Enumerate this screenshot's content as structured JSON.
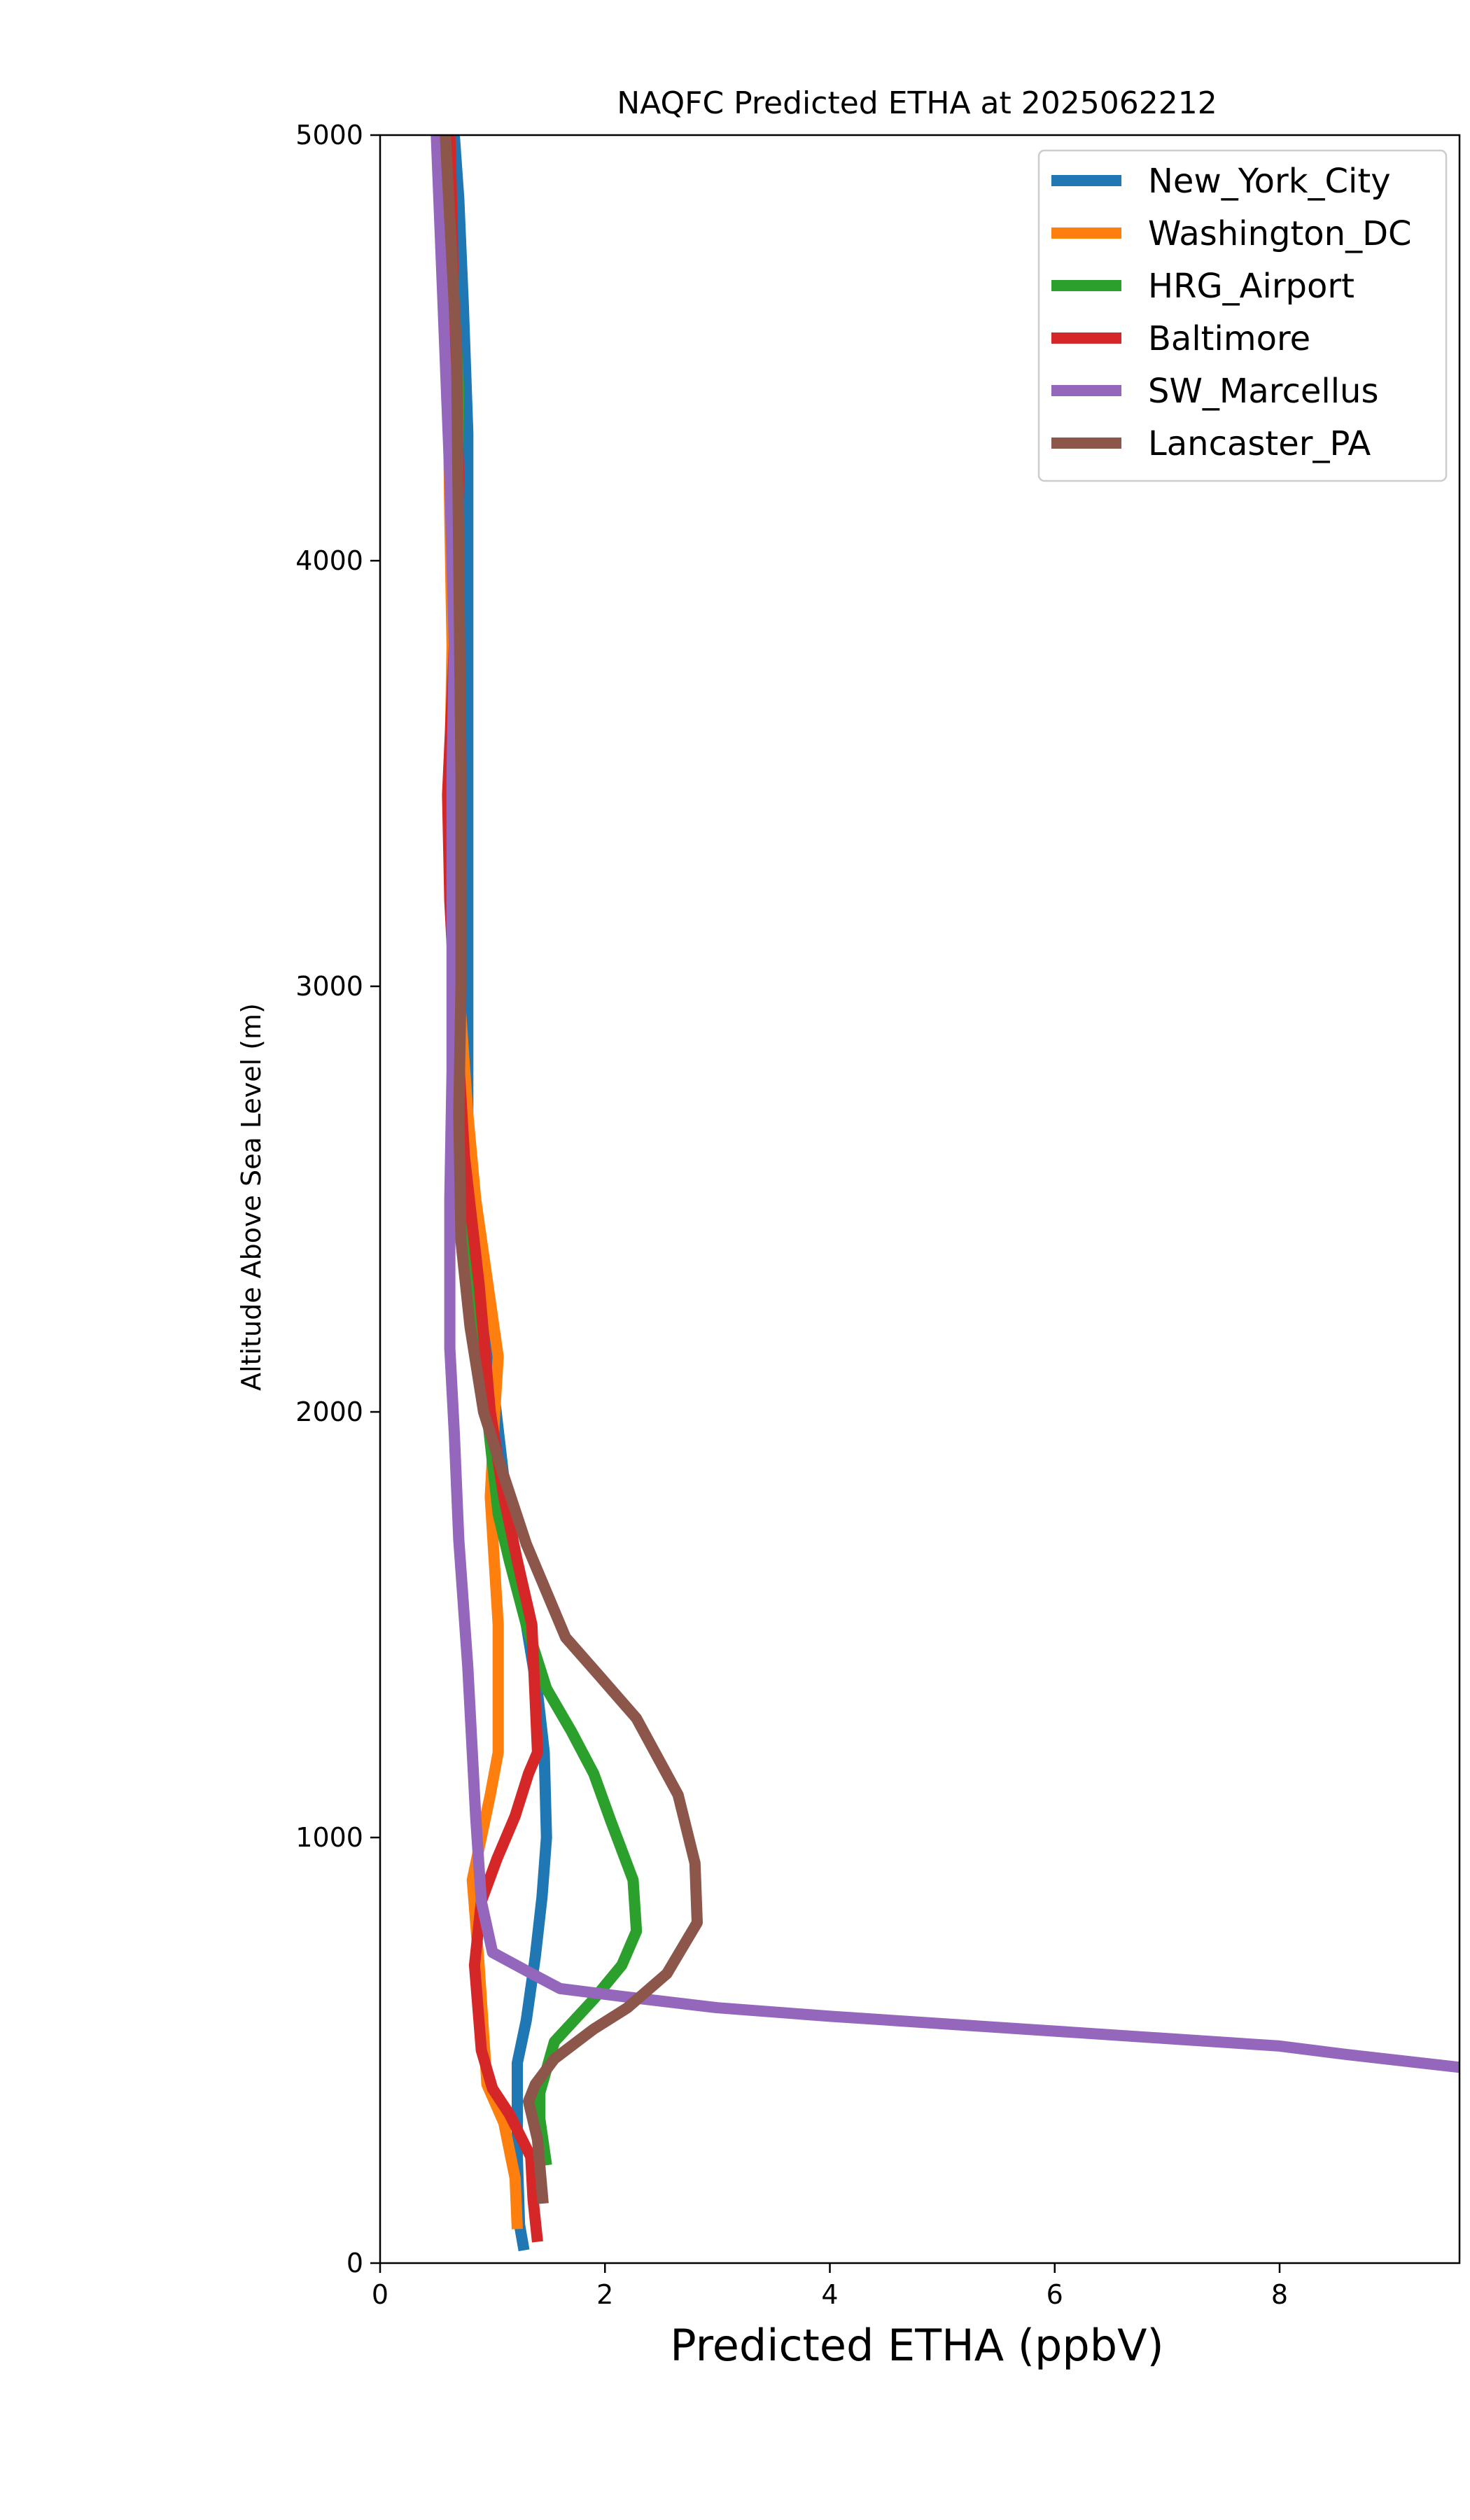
{
  "chart_data": {
    "type": "line",
    "title": "NAQFC Predicted ETHA at 2025062212",
    "xlabel": "Predicted ETHA (ppbV)",
    "ylabel": "Altitude Above Sea Level (m)",
    "xlim": [
      0,
      9.6
    ],
    "ylim": [
      0,
      5000
    ],
    "x_ticks": [
      0,
      2,
      4,
      6,
      8
    ],
    "y_ticks": [
      0,
      1000,
      2000,
      3000,
      4000,
      5000
    ],
    "grid": false,
    "legend_position": "top-right",
    "series": [
      {
        "name": "New_York_City",
        "color": "#1f77b4",
        "points": [
          [
            1.28,
            30
          ],
          [
            1.24,
            90
          ],
          [
            1.22,
            250
          ],
          [
            1.22,
            470
          ],
          [
            1.3,
            570
          ],
          [
            1.38,
            720
          ],
          [
            1.44,
            860
          ],
          [
            1.48,
            1000
          ],
          [
            1.46,
            1200
          ],
          [
            1.4,
            1340
          ],
          [
            1.3,
            1500
          ],
          [
            1.12,
            1800
          ],
          [
            0.9,
            2300
          ],
          [
            0.78,
            2600
          ],
          [
            0.78,
            2900
          ],
          [
            0.78,
            3200
          ],
          [
            0.78,
            3450
          ],
          [
            0.78,
            3800
          ],
          [
            0.78,
            4300
          ],
          [
            0.74,
            4600
          ],
          [
            0.7,
            4850
          ],
          [
            0.66,
            5000
          ]
        ]
      },
      {
        "name": "Washington_DC",
        "color": "#ff7f0e",
        "points": [
          [
            1.22,
            80
          ],
          [
            1.2,
            200
          ],
          [
            1.1,
            330
          ],
          [
            0.95,
            420
          ],
          [
            0.88,
            700
          ],
          [
            0.82,
            900
          ],
          [
            0.98,
            1100
          ],
          [
            1.05,
            1200
          ],
          [
            1.05,
            1500
          ],
          [
            0.98,
            1800
          ],
          [
            1.02,
            2000
          ],
          [
            1.05,
            2130
          ],
          [
            0.85,
            2500
          ],
          [
            0.78,
            2700
          ],
          [
            0.7,
            3000
          ],
          [
            0.66,
            3300
          ],
          [
            0.62,
            3500
          ],
          [
            0.64,
            3800
          ],
          [
            0.62,
            4100
          ],
          [
            0.6,
            4500
          ],
          [
            0.58,
            4800
          ],
          [
            0.56,
            5000
          ]
        ]
      },
      {
        "name": "HRG_Airport",
        "color": "#2ca02c",
        "points": [
          [
            1.48,
            230
          ],
          [
            1.42,
            340
          ],
          [
            1.42,
            400
          ],
          [
            1.55,
            520
          ],
          [
            1.9,
            620
          ],
          [
            2.15,
            700
          ],
          [
            2.28,
            780
          ],
          [
            2.25,
            900
          ],
          [
            2.05,
            1040
          ],
          [
            1.9,
            1150
          ],
          [
            1.7,
            1250
          ],
          [
            1.48,
            1350
          ],
          [
            1.3,
            1500
          ],
          [
            1.15,
            1650
          ],
          [
            1.05,
            1760
          ],
          [
            0.95,
            2000
          ],
          [
            0.85,
            2200
          ],
          [
            0.76,
            2500
          ],
          [
            0.7,
            2800
          ],
          [
            0.65,
            3100
          ],
          [
            0.7,
            3500
          ],
          [
            0.68,
            4000
          ],
          [
            0.7,
            4400
          ],
          [
            0.62,
            4800
          ],
          [
            0.58,
            5000
          ]
        ]
      },
      {
        "name": "Baltimore",
        "color": "#d62728",
        "points": [
          [
            1.4,
            50
          ],
          [
            1.36,
            150
          ],
          [
            1.34,
            250
          ],
          [
            1.15,
            350
          ],
          [
            1.0,
            410
          ],
          [
            0.9,
            500
          ],
          [
            0.84,
            700
          ],
          [
            0.9,
            850
          ],
          [
            1.04,
            950
          ],
          [
            1.2,
            1050
          ],
          [
            1.32,
            1150
          ],
          [
            1.4,
            1200
          ],
          [
            1.35,
            1500
          ],
          [
            1.22,
            1650
          ],
          [
            1.1,
            1800
          ],
          [
            0.98,
            2000
          ],
          [
            0.88,
            2300
          ],
          [
            0.75,
            2600
          ],
          [
            0.66,
            3000
          ],
          [
            0.62,
            3200
          ],
          [
            0.6,
            3450
          ],
          [
            0.66,
            3800
          ],
          [
            0.7,
            4200
          ],
          [
            0.66,
            4500
          ],
          [
            0.64,
            4800
          ],
          [
            0.62,
            5000
          ]
        ]
      },
      {
        "name": "SW_Marcellus",
        "color": "#9467bd",
        "points": [
          [
            9.6,
            460
          ],
          [
            8.6,
            490
          ],
          [
            8.0,
            510
          ],
          [
            6.0,
            545
          ],
          [
            4.0,
            580
          ],
          [
            3.0,
            600
          ],
          [
            2.2,
            625
          ],
          [
            1.6,
            645
          ],
          [
            1.35,
            680
          ],
          [
            1.0,
            730
          ],
          [
            0.9,
            850
          ],
          [
            0.85,
            1050
          ],
          [
            0.78,
            1400
          ],
          [
            0.7,
            1700
          ],
          [
            0.66,
            1950
          ],
          [
            0.62,
            2150
          ],
          [
            0.62,
            2500
          ],
          [
            0.64,
            2800
          ],
          [
            0.64,
            3100
          ],
          [
            0.64,
            3500
          ],
          [
            0.66,
            3800
          ],
          [
            0.62,
            4200
          ],
          [
            0.56,
            4600
          ],
          [
            0.5,
            5000
          ]
        ]
      },
      {
        "name": "Lancaster_PA",
        "color": "#8c564b",
        "points": [
          [
            1.45,
            140
          ],
          [
            1.4,
            290
          ],
          [
            1.32,
            380
          ],
          [
            1.38,
            420
          ],
          [
            1.55,
            480
          ],
          [
            1.9,
            550
          ],
          [
            2.2,
            600
          ],
          [
            2.55,
            680
          ],
          [
            2.82,
            800
          ],
          [
            2.8,
            940
          ],
          [
            2.65,
            1100
          ],
          [
            2.28,
            1280
          ],
          [
            1.95,
            1380
          ],
          [
            1.65,
            1470
          ],
          [
            1.3,
            1690
          ],
          [
            1.1,
            1850
          ],
          [
            0.92,
            2000
          ],
          [
            0.8,
            2200
          ],
          [
            0.72,
            2400
          ],
          [
            0.7,
            2700
          ],
          [
            0.72,
            3000
          ],
          [
            0.72,
            3500
          ],
          [
            0.7,
            4000
          ],
          [
            0.68,
            4500
          ],
          [
            0.62,
            4800
          ],
          [
            0.58,
            5000
          ]
        ]
      }
    ]
  }
}
